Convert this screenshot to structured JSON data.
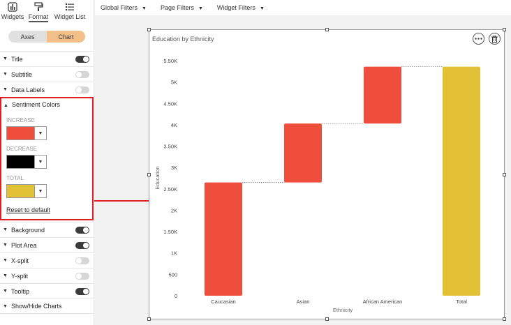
{
  "tabs": [
    {
      "label": "Widgets",
      "icon": "bar-chart-icon"
    },
    {
      "label": "Format",
      "icon": "paint-roller-icon"
    },
    {
      "label": "Widget List",
      "icon": "list-icon"
    }
  ],
  "segment": {
    "axes": "Axes",
    "chart": "Chart"
  },
  "rows": {
    "title": "Title",
    "subtitle": "Subtitle",
    "data_labels": "Data Labels",
    "background": "Background",
    "plot_area": "Plot Area",
    "x_split": "X-split",
    "y_split": "Y-split",
    "tooltip": "Tooltip",
    "show_hide_charts": "Show/Hide Charts"
  },
  "sentiment": {
    "header": "Sentiment Colors",
    "increase_label": "INCREASE",
    "decrease_label": "DECREASE",
    "total_label": "TOTAL",
    "increase_color": "#f04e3c",
    "decrease_color": "#000000",
    "total_color": "#e2c137",
    "reset": "Reset to default"
  },
  "filters": {
    "global": "Global Filters",
    "page": "Page Filters",
    "widget": "Widget Filters"
  },
  "chart_data": {
    "type": "waterfall",
    "title": "Education by Ethnicity",
    "xlabel": "Ethnicity",
    "ylabel": "Education",
    "categories": [
      "Caucasian",
      "Asian",
      "African American",
      "Total"
    ],
    "values": [
      2650,
      1380,
      1330,
      5360
    ],
    "ylim": [
      0,
      5500
    ],
    "yticks": [
      "0",
      "500",
      "1K",
      "1.50K",
      "2K",
      "2.50K",
      "3K",
      "3.50K",
      "4K",
      "4.50K",
      "5K",
      "5.50K"
    ],
    "colors": {
      "increase": "#f04e3c",
      "total": "#e2c137"
    }
  }
}
